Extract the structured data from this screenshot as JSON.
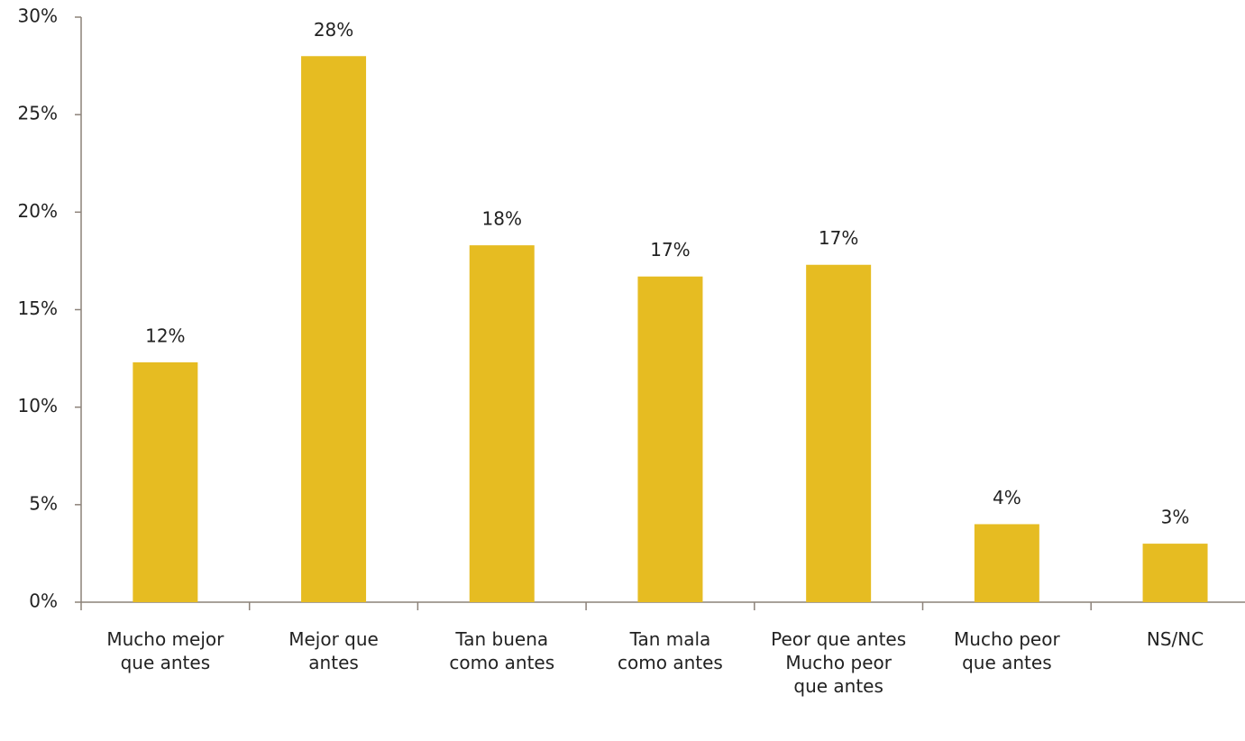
{
  "chart_data": {
    "type": "bar",
    "categories": [
      "Mucho mejor que antes",
      "Mejor que antes",
      "Tan buena como antes",
      "Tan mala como antes",
      "Peor que antes Mucho peor que antes",
      "Mucho peor que antes",
      "NS/NC"
    ],
    "values": [
      12.3,
      28.0,
      18.3,
      16.7,
      17.3,
      4.0,
      3.0
    ],
    "value_labels": [
      "12%",
      "28%",
      "18%",
      "17%",
      "17%",
      "4%",
      "3%"
    ],
    "color": "#e6bc22",
    "ylim": [
      0,
      30
    ],
    "yticks": [
      {
        "value": 0,
        "label": "0%"
      },
      {
        "value": 5,
        "label": "5%"
      },
      {
        "value": 10,
        "label": "10%"
      },
      {
        "value": 15,
        "label": "15%"
      },
      {
        "value": 20,
        "label": "20%"
      },
      {
        "value": 25,
        "label": "25%"
      },
      {
        "value": 30,
        "label": "30%"
      }
    ],
    "grid": false
  }
}
